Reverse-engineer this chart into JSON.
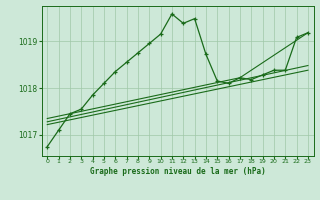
{
  "background_color": "#cde8d8",
  "grid_color": "#a0c8a8",
  "line_color": "#1a6b1a",
  "title": "Graphe pression niveau de la mer (hPa)",
  "xlim": [
    -0.5,
    23.5
  ],
  "ylim": [
    1016.55,
    1019.75
  ],
  "yticks": [
    1017,
    1018,
    1019
  ],
  "xticks": [
    0,
    1,
    2,
    3,
    4,
    5,
    6,
    7,
    8,
    9,
    10,
    11,
    12,
    13,
    14,
    15,
    16,
    17,
    18,
    19,
    20,
    21,
    22,
    23
  ],
  "main_x": [
    0,
    1,
    2,
    3,
    4,
    5,
    6,
    7,
    8,
    9,
    10,
    11,
    12,
    13,
    14,
    15,
    16,
    17,
    18,
    19,
    20,
    21,
    22,
    23
  ],
  "main_y": [
    1016.75,
    1017.1,
    1017.45,
    1017.55,
    1017.85,
    1018.1,
    1018.35,
    1018.55,
    1018.75,
    1018.95,
    1019.15,
    1019.58,
    1019.38,
    1019.48,
    1018.72,
    1018.15,
    1018.1,
    1018.22,
    1018.18,
    1018.28,
    1018.38,
    1018.38,
    1019.08,
    1019.18
  ],
  "line1_x": [
    0,
    23
  ],
  "line1_y": [
    1017.22,
    1018.38
  ],
  "line2_x": [
    0,
    23
  ],
  "line2_y": [
    1017.28,
    1018.48
  ],
  "line3_x": [
    0,
    17,
    23
  ],
  "line3_y": [
    1017.35,
    1018.22,
    1019.18
  ]
}
